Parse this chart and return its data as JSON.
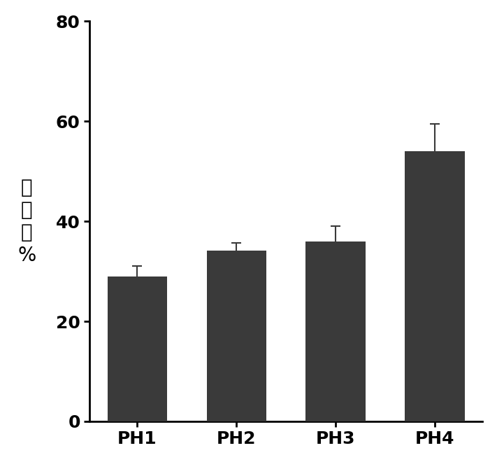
{
  "categories": [
    "PH1",
    "PH2",
    "PH3",
    "PH4"
  ],
  "values": [
    29.0,
    34.2,
    36.0,
    54.0
  ],
  "errors": [
    2.0,
    1.5,
    3.0,
    5.5
  ],
  "bar_color": "#3a3a3a",
  "bar_width": 0.6,
  "ylabel_chars": [
    "存",
    "活",
    "率",
    "%"
  ],
  "ylim": [
    0,
    80
  ],
  "yticks": [
    0,
    20,
    40,
    60,
    80
  ],
  "background_color": "#ffffff",
  "tick_fontsize": 18,
  "ylabel_fontsize": 20,
  "xlabel_fontsize": 18,
  "error_capsize": 5,
  "error_linewidth": 1.5,
  "error_color": "#3a3a3a"
}
